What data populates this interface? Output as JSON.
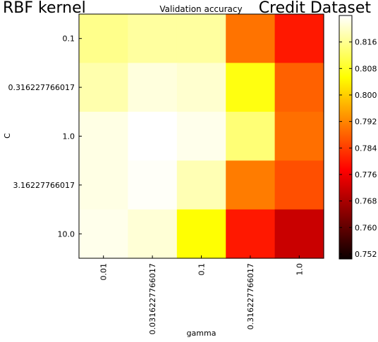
{
  "header": {
    "left_label": "RBF kernel",
    "right_label": "Credit Dataset"
  },
  "chart_data": {
    "type": "heatmap",
    "title": "Validation accuracy",
    "xlabel": "gamma",
    "ylabel": "C",
    "x_categories": [
      "0.01",
      "0.0316227766017",
      "0.1",
      "0.316227766017",
      "1.0"
    ],
    "y_categories": [
      "0.1",
      "0.316227766017",
      "1.0",
      "3.16227766017",
      "10.0"
    ],
    "values": [
      [
        0.8155,
        0.817,
        0.817,
        0.79,
        0.78
      ],
      [
        0.818,
        0.8215,
        0.8205,
        0.8065,
        0.788
      ],
      [
        0.822,
        0.824,
        0.8225,
        0.814,
        0.7895
      ],
      [
        0.822,
        0.8235,
        0.8185,
        0.791,
        0.786
      ],
      [
        0.8225,
        0.821,
        0.8055,
        0.78,
        0.7705
      ]
    ],
    "colormap": "hot",
    "vmin": 0.7505,
    "vmax": 0.824,
    "colorbar_ticks": [
      "0.752",
      "0.760",
      "0.768",
      "0.776",
      "0.784",
      "0.792",
      "0.800",
      "0.808",
      "0.816"
    ],
    "grid": false
  }
}
